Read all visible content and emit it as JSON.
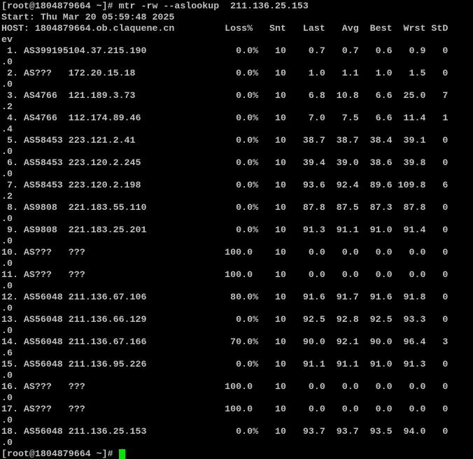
{
  "terminal": {
    "colors": {
      "background": "#000000",
      "foreground": "#bfbfbf",
      "cursor": "#00e800"
    },
    "session": {
      "prompt": "[root@1804879664 ~]#",
      "command": "mtr -rw --aslookup  211.136.25.153",
      "start_time": "Thu Mar 20 05:59:48 2025",
      "local_host": "1804879664.ob.claquene.cn",
      "columns": [
        "Loss%",
        "Snt",
        "Last",
        "Avg",
        "Best",
        "Wrst",
        "StDev"
      ],
      "hops": [
        {
          "hop": 1,
          "asn": "AS399195",
          "host": "104.37.215.190",
          "loss": "0.0%",
          "snt": "10",
          "last": "0.7",
          "avg": "0.7",
          "best": "0.6",
          "wrst": "0.9",
          "stdev": "0.0"
        },
        {
          "hop": 2,
          "asn": "AS???",
          "host": "172.20.15.18",
          "loss": "0.0%",
          "snt": "10",
          "last": "1.0",
          "avg": "1.1",
          "best": "1.0",
          "wrst": "1.5",
          "stdev": "0.0"
        },
        {
          "hop": 3,
          "asn": "AS4766",
          "host": "121.189.3.73",
          "loss": "0.0%",
          "snt": "10",
          "last": "6.8",
          "avg": "10.8",
          "best": "6.6",
          "wrst": "25.0",
          "stdev": "7.2"
        },
        {
          "hop": 4,
          "asn": "AS4766",
          "host": "112.174.89.46",
          "loss": "0.0%",
          "snt": "10",
          "last": "7.0",
          "avg": "7.5",
          "best": "6.6",
          "wrst": "11.4",
          "stdev": "1.4"
        },
        {
          "hop": 5,
          "asn": "AS58453",
          "host": "223.121.2.41",
          "loss": "0.0%",
          "snt": "10",
          "last": "38.7",
          "avg": "38.7",
          "best": "38.4",
          "wrst": "39.1",
          "stdev": "0.0"
        },
        {
          "hop": 6,
          "asn": "AS58453",
          "host": "223.120.2.245",
          "loss": "0.0%",
          "snt": "10",
          "last": "39.4",
          "avg": "39.0",
          "best": "38.6",
          "wrst": "39.8",
          "stdev": "0.0"
        },
        {
          "hop": 7,
          "asn": "AS58453",
          "host": "223.120.2.198",
          "loss": "0.0%",
          "snt": "10",
          "last": "93.6",
          "avg": "92.4",
          "best": "89.6",
          "wrst": "109.8",
          "stdev": "6.2"
        },
        {
          "hop": 8,
          "asn": "AS9808",
          "host": "221.183.55.110",
          "loss": "0.0%",
          "snt": "10",
          "last": "87.8",
          "avg": "87.5",
          "best": "87.3",
          "wrst": "87.8",
          "stdev": "0.0"
        },
        {
          "hop": 9,
          "asn": "AS9808",
          "host": "221.183.25.201",
          "loss": "0.0%",
          "snt": "10",
          "last": "91.3",
          "avg": "91.1",
          "best": "91.0",
          "wrst": "91.4",
          "stdev": "0.0"
        },
        {
          "hop": 10,
          "asn": "AS???",
          "host": "???",
          "loss": "100.0",
          "snt": "10",
          "last": "0.0",
          "avg": "0.0",
          "best": "0.0",
          "wrst": "0.0",
          "stdev": "0.0"
        },
        {
          "hop": 11,
          "asn": "AS???",
          "host": "???",
          "loss": "100.0",
          "snt": "10",
          "last": "0.0",
          "avg": "0.0",
          "best": "0.0",
          "wrst": "0.0",
          "stdev": "0.0"
        },
        {
          "hop": 12,
          "asn": "AS56048",
          "host": "211.136.67.106",
          "loss": "80.0%",
          "snt": "10",
          "last": "91.6",
          "avg": "91.7",
          "best": "91.6",
          "wrst": "91.8",
          "stdev": "0.0"
        },
        {
          "hop": 13,
          "asn": "AS56048",
          "host": "211.136.66.129",
          "loss": "0.0%",
          "snt": "10",
          "last": "92.5",
          "avg": "92.8",
          "best": "92.5",
          "wrst": "93.3",
          "stdev": "0.0"
        },
        {
          "hop": 14,
          "asn": "AS56048",
          "host": "211.136.67.166",
          "loss": "70.0%",
          "snt": "10",
          "last": "90.0",
          "avg": "92.1",
          "best": "90.0",
          "wrst": "96.4",
          "stdev": "3.6"
        },
        {
          "hop": 15,
          "asn": "AS56048",
          "host": "211.136.95.226",
          "loss": "0.0%",
          "snt": "10",
          "last": "91.1",
          "avg": "91.1",
          "best": "91.0",
          "wrst": "91.3",
          "stdev": "0.0"
        },
        {
          "hop": 16,
          "asn": "AS???",
          "host": "???",
          "loss": "100.0",
          "snt": "10",
          "last": "0.0",
          "avg": "0.0",
          "best": "0.0",
          "wrst": "0.0",
          "stdev": "0.0"
        },
        {
          "hop": 17,
          "asn": "AS???",
          "host": "???",
          "loss": "100.0",
          "snt": "10",
          "last": "0.0",
          "avg": "0.0",
          "best": "0.0",
          "wrst": "0.0",
          "stdev": "0.0"
        },
        {
          "hop": 18,
          "asn": "AS56048",
          "host": "211.136.25.153",
          "loss": "0.0%",
          "snt": "10",
          "last": "93.7",
          "avg": "93.7",
          "best": "93.5",
          "wrst": "94.0",
          "stdev": "0.0"
        }
      ]
    },
    "lines": [
      "[root@1804879664 ~]# mtr -rw --aslookup  211.136.25.153",
      "Start: Thu Mar 20 05:59:48 2025",
      "HOST: 1804879664.ob.claquene.cn         Loss%   Snt   Last   Avg  Best  Wrst StD",
      "ev",
      " 1. AS399195104.37.215.190                0.0%   10    0.7   0.7   0.6   0.9   0",
      ".0",
      " 2. AS???   172.20.15.18                  0.0%   10    1.0   1.1   1.0   1.5   0",
      ".0",
      " 3. AS4766  121.189.3.73                  0.0%   10    6.8  10.8   6.6  25.0   7",
      ".2",
      " 4. AS4766  112.174.89.46                 0.0%   10    7.0   7.5   6.6  11.4   1",
      ".4",
      " 5. AS58453 223.121.2.41                  0.0%   10   38.7  38.7  38.4  39.1   0",
      ".0",
      " 6. AS58453 223.120.2.245                 0.0%   10   39.4  39.0  38.6  39.8   0",
      ".0",
      " 7. AS58453 223.120.2.198                 0.0%   10   93.6  92.4  89.6 109.8   6",
      ".2",
      " 8. AS9808  221.183.55.110                0.0%   10   87.8  87.5  87.3  87.8   0",
      ".0",
      " 9. AS9808  221.183.25.201                0.0%   10   91.3  91.1  91.0  91.4   0",
      ".0",
      "10. AS???   ???                         100.0    10    0.0   0.0   0.0   0.0   0",
      ".0",
      "11. AS???   ???                         100.0    10    0.0   0.0   0.0   0.0   0",
      ".0",
      "12. AS56048 211.136.67.106               80.0%   10   91.6  91.7  91.6  91.8   0",
      ".0",
      "13. AS56048 211.136.66.129                0.0%   10   92.5  92.8  92.5  93.3   0",
      ".0",
      "14. AS56048 211.136.67.166               70.0%   10   90.0  92.1  90.0  96.4   3",
      ".6",
      "15. AS56048 211.136.95.226                0.0%   10   91.1  91.1  91.0  91.3   0",
      ".0",
      "16. AS???   ???                         100.0    10    0.0   0.0   0.0   0.0   0",
      ".0",
      "17. AS???   ???                         100.0    10    0.0   0.0   0.0   0.0   0",
      ".0",
      "18. AS56048 211.136.25.153                0.0%   10   93.7  93.7  93.5  94.0   0",
      ".0"
    ],
    "prompt_line": "[root@1804879664 ~]# "
  }
}
